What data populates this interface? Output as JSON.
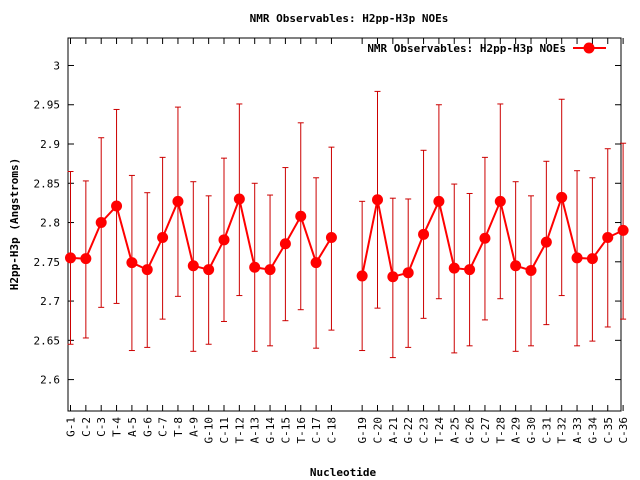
{
  "chart_data": {
    "type": "line",
    "title": "NMR Observables: H2pp-H3p NOEs",
    "xlabel": "Nucleotide",
    "ylabel": "H2pp-H3p (Angstroms)",
    "ylim": [
      2.56,
      3.035
    ],
    "yticks": [
      "2.6",
      "2.65",
      "2.7",
      "2.75",
      "2.8",
      "2.85",
      "2.9",
      "2.95",
      "3"
    ],
    "grid": false,
    "legend": "top-right",
    "colors": {
      "series": "#ff0000",
      "errorbar": "#cc0000",
      "axis": "#000000"
    },
    "categories": [
      "G-1",
      "C-2",
      "C-3",
      "T-4",
      "A-5",
      "G-6",
      "C-7",
      "T-8",
      "A-9",
      "G-10",
      "C-11",
      "T-12",
      "A-13",
      "G-14",
      "C-15",
      "T-16",
      "C-17",
      "C-18",
      "",
      "G-19",
      "C-20",
      "A-21",
      "G-22",
      "C-23",
      "T-24",
      "A-25",
      "G-26",
      "C-27",
      "T-28",
      "A-29",
      "G-30",
      "C-31",
      "T-32",
      "A-33",
      "G-34",
      "C-35",
      "C-36"
    ],
    "series": [
      {
        "name": "NMR Observables: H2pp-H3p NOEs",
        "segments": [
          [
            0,
            17
          ],
          [
            19,
            36
          ]
        ],
        "values": [
          2.755,
          2.754,
          2.8,
          2.821,
          2.749,
          2.74,
          2.781,
          2.827,
          2.745,
          2.74,
          2.778,
          2.83,
          2.743,
          2.74,
          2.773,
          2.808,
          2.749,
          2.781,
          null,
          2.732,
          2.829,
          2.731,
          2.736,
          2.785,
          2.827,
          2.742,
          2.74,
          2.78,
          2.827,
          2.745,
          2.739,
          2.775,
          2.832,
          2.755,
          2.754,
          2.781,
          2.79
        ],
        "err_low": [
          2.645,
          2.653,
          2.692,
          2.697,
          2.637,
          2.641,
          2.677,
          2.706,
          2.636,
          2.645,
          2.674,
          2.707,
          2.636,
          2.643,
          2.675,
          2.689,
          2.64,
          2.663,
          null,
          2.637,
          2.691,
          2.628,
          2.641,
          2.678,
          2.703,
          2.634,
          2.643,
          2.676,
          2.703,
          2.636,
          2.643,
          2.67,
          2.707,
          2.643,
          2.649,
          2.667,
          2.677
        ],
        "err_high": [
          2.865,
          2.853,
          2.908,
          2.944,
          2.86,
          2.838,
          2.883,
          2.947,
          2.852,
          2.834,
          2.882,
          2.951,
          2.85,
          2.835,
          2.87,
          2.927,
          2.857,
          2.896,
          null,
          2.827,
          2.967,
          2.831,
          2.83,
          2.892,
          2.95,
          2.849,
          2.837,
          2.883,
          2.951,
          2.852,
          2.834,
          2.878,
          2.957,
          2.866,
          2.857,
          2.894,
          2.901
        ]
      }
    ]
  }
}
